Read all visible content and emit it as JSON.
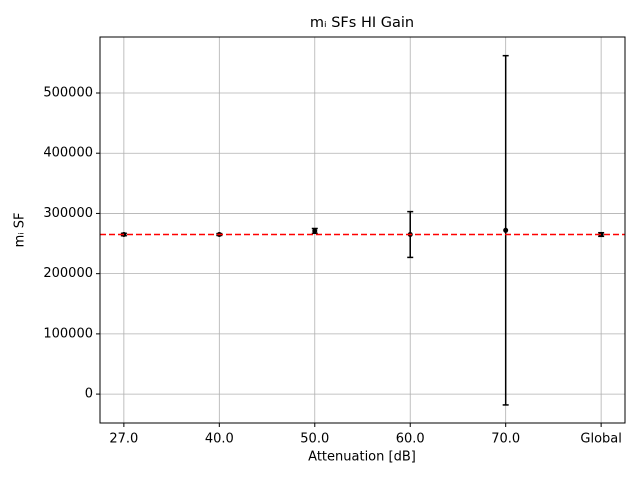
{
  "chart_data": {
    "type": "errorbar",
    "title": "mᵢ SFs HI Gain",
    "x_label": "Attenuation [dB]",
    "y_label": "mᵢ SF",
    "categories": [
      "27.0",
      "40.0",
      "50.0",
      "60.0",
      "70.0",
      "Global"
    ],
    "series": [
      {
        "color": "#000000",
        "values": [
          265000,
          265000,
          271000,
          265000,
          272000,
          265000
        ],
        "errors": [
          2000,
          1500,
          4000,
          38000,
          290000,
          3000
        ]
      }
    ],
    "reference_line": {
      "value": 265000,
      "color": "#ff0000",
      "style": "dashed"
    },
    "ylim": [
      -48000,
      593000
    ],
    "yticks": [
      0,
      100000,
      200000,
      300000,
      400000,
      500000
    ],
    "grid": true
  }
}
